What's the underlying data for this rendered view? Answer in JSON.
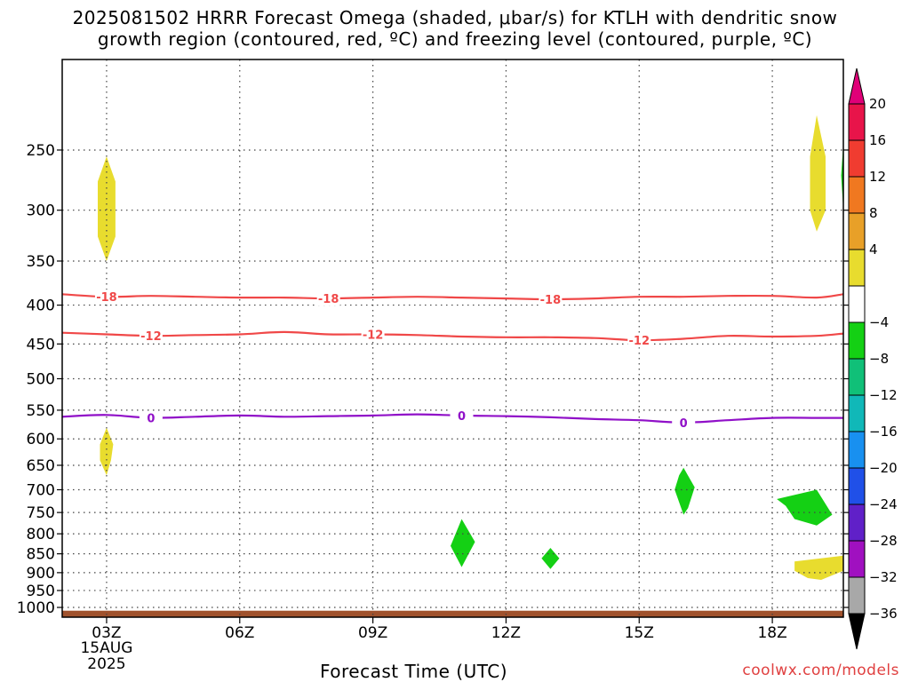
{
  "chart_data": {
    "type": "heatmap",
    "title_line1": "2025081502 HRRR Forecast Omega (shaded, μbar/s) for KTLH with dendritic snow",
    "title_line2": "growth region (contoured, red, ºC) and freezing level (contoured, purple, ºC)",
    "xlabel": "Forecast Time (UTC)",
    "credit": "coolwx.com/models",
    "x_ticks": [
      {
        "hour": 3,
        "label": "03Z",
        "sub1": "15AUG",
        "sub2": "2025"
      },
      {
        "hour": 6,
        "label": "06Z"
      },
      {
        "hour": 9,
        "label": "09Z"
      },
      {
        "hour": 12,
        "label": "12Z"
      },
      {
        "hour": 15,
        "label": "15Z"
      },
      {
        "hour": 18,
        "label": "18Z"
      }
    ],
    "xlim": [
      2,
      19.6
    ],
    "y_scale": "log",
    "ylim": [
      1030,
      190
    ],
    "y_ticks": [
      250,
      300,
      350,
      400,
      450,
      500,
      550,
      600,
      650,
      700,
      750,
      800,
      850,
      900,
      950,
      1000
    ],
    "grid": true,
    "colorbar": {
      "labels": [
        "20",
        "16",
        "12",
        "8",
        "4",
        "−4",
        "−8",
        "−12",
        "−16",
        "−20",
        "−24",
        "−28",
        "−32",
        "−36"
      ],
      "colors": [
        "#e8144a",
        "#f03c30",
        "#f07820",
        "#e8a028",
        "#e8dc2e",
        "#ffffff",
        "#14d014",
        "#10c078",
        "#10b8b8",
        "#1890f0",
        "#2050e8",
        "#6020c8",
        "#a010c0",
        "#a8a8a8",
        "#000000"
      ],
      "top_color": "#e00078"
    },
    "omega_regions": [
      {
        "value_class": "4 to 8",
        "color": "#e8dc2e",
        "points": [
          [
            3.0,
            255
          ],
          [
            3.2,
            275
          ],
          [
            3.2,
            325
          ],
          [
            3.0,
            350
          ],
          [
            2.8,
            325
          ],
          [
            2.8,
            275
          ]
        ]
      },
      {
        "value_class": "4 to 8",
        "color": "#e8dc2e",
        "points": [
          [
            3.0,
            580
          ],
          [
            3.15,
            610
          ],
          [
            3.1,
            640
          ],
          [
            3.0,
            670
          ],
          [
            2.85,
            640
          ],
          [
            2.85,
            610
          ]
        ]
      },
      {
        "value_class": "4 to 8",
        "color": "#e8dc2e",
        "points": [
          [
            19.0,
            225
          ],
          [
            19.2,
            255
          ],
          [
            19.2,
            300
          ],
          [
            19.0,
            320
          ],
          [
            18.85,
            300
          ],
          [
            18.85,
            255
          ]
        ]
      },
      {
        "value_class": "4 to 8",
        "color": "#e8dc2e",
        "points": [
          [
            18.5,
            870
          ],
          [
            19.6,
            855
          ],
          [
            19.6,
            895
          ],
          [
            19.1,
            920
          ],
          [
            18.8,
            915
          ],
          [
            18.5,
            895
          ]
        ]
      },
      {
        "value_class": "-4 to -8",
        "color": "#14d014",
        "points": [
          [
            19.6,
            245
          ],
          [
            19.55,
            270
          ],
          [
            19.6,
            300
          ]
        ]
      },
      {
        "value_class": "-4 to -8",
        "color": "#14d014",
        "points": [
          [
            16.0,
            655
          ],
          [
            16.25,
            695
          ],
          [
            16.1,
            740
          ],
          [
            16.0,
            755
          ],
          [
            15.8,
            700
          ],
          [
            15.9,
            670
          ]
        ]
      },
      {
        "value_class": "-4 to -8",
        "color": "#14d014",
        "points": [
          [
            18.1,
            720
          ],
          [
            19.0,
            700
          ],
          [
            19.35,
            755
          ],
          [
            19.0,
            780
          ],
          [
            18.5,
            765
          ],
          [
            18.3,
            735
          ]
        ]
      },
      {
        "value_class": "-4 to -8",
        "color": "#14d014",
        "points": [
          [
            11.0,
            765
          ],
          [
            11.3,
            820
          ],
          [
            11.0,
            885
          ],
          [
            10.75,
            830
          ]
        ]
      },
      {
        "value_class": "-4 to -8",
        "color": "#14d014",
        "points": [
          [
            13.0,
            835
          ],
          [
            13.2,
            862
          ],
          [
            13.0,
            890
          ],
          [
            12.8,
            862
          ]
        ]
      }
    ],
    "series": [
      {
        "name": "-18",
        "color": "#f04848",
        "x": [
          2,
          3,
          4,
          5,
          6,
          7,
          8,
          9,
          10,
          11,
          12,
          13,
          14,
          15,
          16,
          17,
          18,
          19,
          19.6
        ],
        "y": [
          387,
          390,
          389,
          390,
          391,
          391,
          392,
          391,
          390,
          391,
          392,
          393,
          392,
          390,
          390,
          389,
          389,
          391,
          387
        ],
        "labels_at": [
          3,
          8,
          13
        ]
      },
      {
        "name": "-12",
        "color": "#f04848",
        "x": [
          2,
          3,
          4,
          5,
          6,
          7,
          8,
          9,
          10,
          11,
          12,
          13,
          14,
          15,
          16,
          17,
          18,
          19,
          19.6
        ],
        "y": [
          435,
          437,
          439,
          438,
          437,
          434,
          437,
          437,
          438,
          440,
          441,
          441,
          442,
          445,
          443,
          439,
          440,
          439,
          436
        ],
        "labels_at": [
          4,
          9,
          15
        ]
      },
      {
        "name": "0",
        "color": "#9010c8",
        "x": [
          2,
          3,
          4,
          5,
          6,
          7,
          8,
          9,
          10,
          11,
          12,
          13,
          14,
          15,
          16,
          17,
          18,
          19,
          19.6
        ],
        "y": [
          561,
          558,
          563,
          561,
          559,
          561,
          560,
          559,
          557,
          559,
          560,
          562,
          565,
          567,
          571,
          567,
          563,
          563,
          563
        ],
        "labels_at": [
          4,
          11,
          16
        ]
      }
    ],
    "terrain_color": "#a0522d",
    "terrain_top_hPa": 1010
  }
}
